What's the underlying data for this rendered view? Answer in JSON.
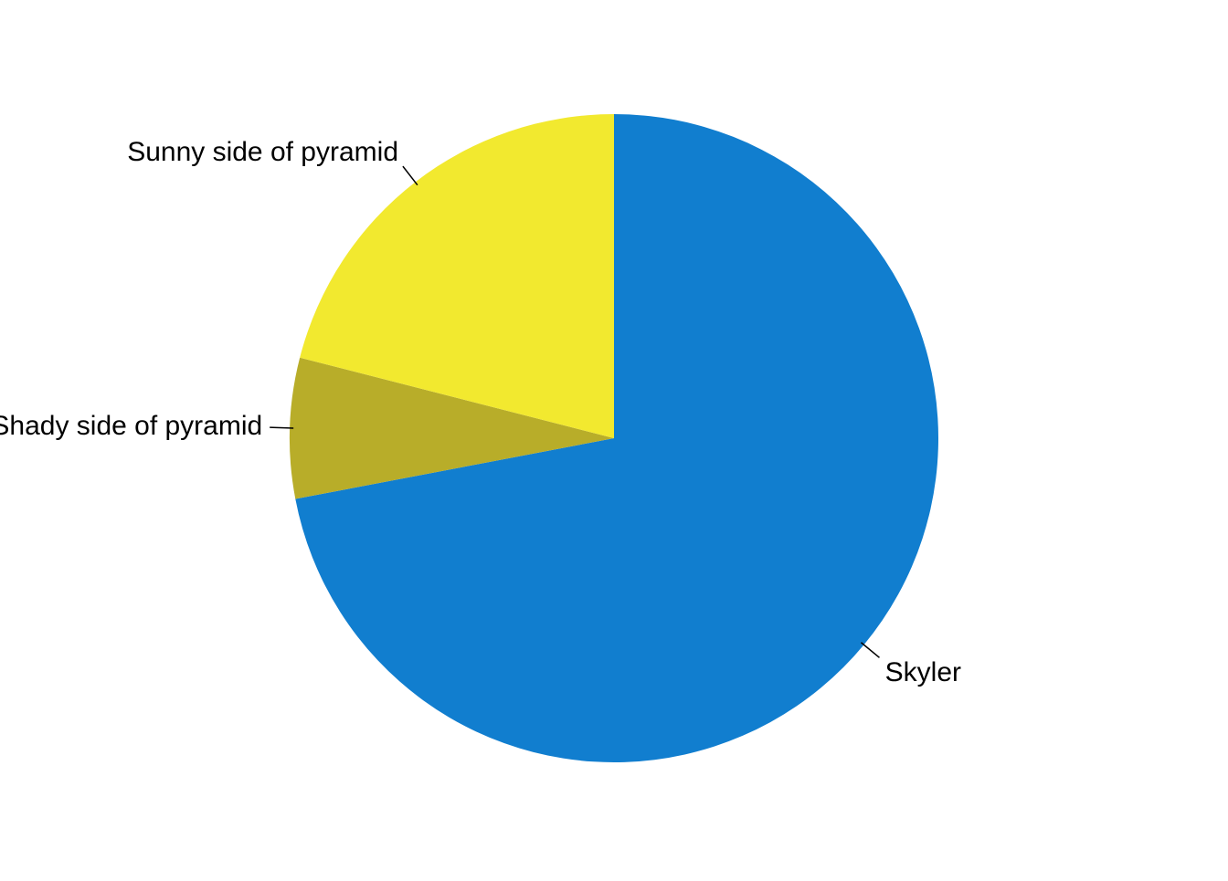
{
  "chart_data": {
    "type": "pie",
    "start_angle_deg": 90,
    "direction": "clockwise",
    "legend": "none",
    "labels_placement": "outside-with-leader-lines",
    "slices": [
      {
        "label": "Skyler",
        "value": 72,
        "color": "#117ecf"
      },
      {
        "label": "Shady side of pyramid",
        "value": 7,
        "color": "#b8ad29"
      },
      {
        "label": "Sunny side of pyramid",
        "value": 21,
        "color": "#f2e92f"
      }
    ]
  }
}
